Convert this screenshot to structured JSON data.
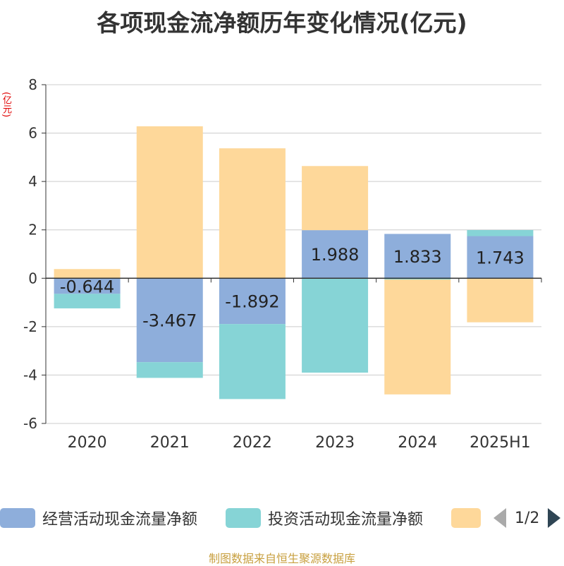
{
  "title": "各项现金流净额历年变化情况(亿元)",
  "unit": "(亿元)",
  "source": "制图数据来自恒生聚源数据库",
  "legend": {
    "items": [
      {
        "label": "经营活动现金流量净额",
        "color": "#8eaedb"
      },
      {
        "label": "投资活动现金流量净额",
        "color": "#86d4d6"
      },
      {
        "label": "",
        "color": "#fed89a"
      }
    ],
    "page": "1/2"
  },
  "chart_data": {
    "type": "bar",
    "stacked": true,
    "categories": [
      "2020",
      "2021",
      "2022",
      "2023",
      "2024",
      "2025H1"
    ],
    "ylim": [
      -6,
      8
    ],
    "yticks": [
      -6,
      -4,
      -2,
      0,
      2,
      4,
      6,
      8
    ],
    "grid": true,
    "series": [
      {
        "name": "经营活动现金流量净额",
        "color": "#8eaedb",
        "values": [
          -0.644,
          -3.467,
          -1.892,
          1.988,
          1.833,
          1.743
        ],
        "labels": [
          "-0.644",
          "-3.467",
          "-1.892",
          "1.988",
          "1.833",
          "1.743"
        ]
      },
      {
        "name": "投资活动现金流量净额",
        "color": "#86d4d6",
        "values": [
          -0.6,
          -0.65,
          -3.1,
          -3.9,
          -0.05,
          0.25
        ]
      },
      {
        "color": "#fed89a",
        "values": [
          0.38,
          6.28,
          5.37,
          2.65,
          -4.75,
          -1.82
        ]
      }
    ]
  }
}
